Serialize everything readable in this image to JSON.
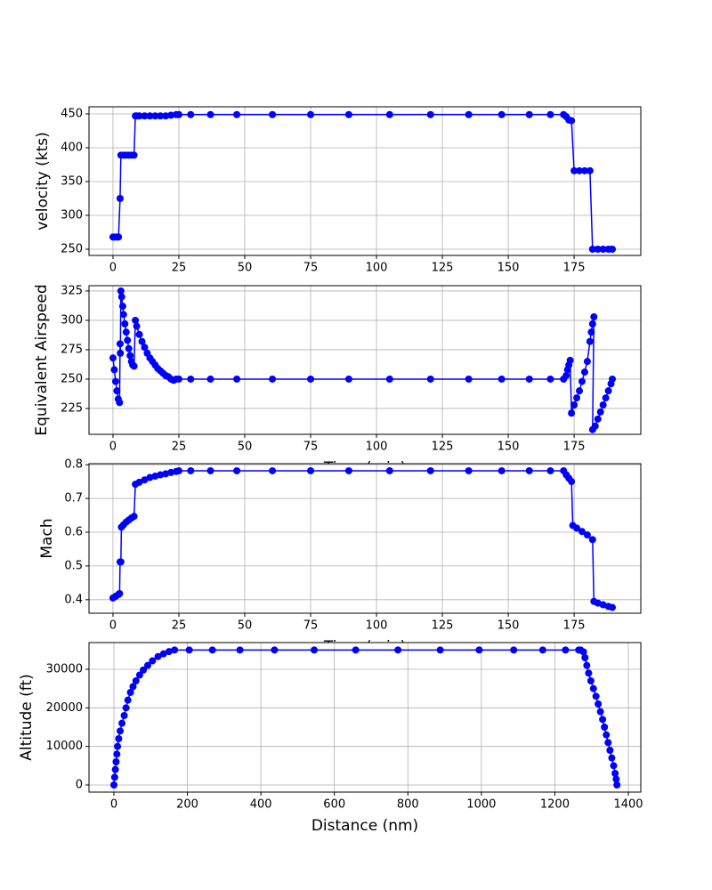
{
  "chart_data": [
    {
      "type": "line",
      "ylabel": "velocity (kts)",
      "color": "#0000ff",
      "grid": true,
      "x": [
        0,
        0.7,
        1.4,
        2.1,
        2.7,
        3,
        4,
        5,
        6,
        7,
        8,
        8.5,
        9,
        10,
        12,
        14,
        16,
        18,
        20,
        22,
        24,
        25,
        29.5,
        37,
        47,
        60.5,
        75,
        89.5,
        105,
        120.5,
        135,
        147.5,
        158,
        166,
        171,
        172,
        173,
        174,
        175,
        177,
        179,
        181,
        182,
        184,
        186,
        188,
        189.5
      ],
      "values": [
        268,
        268,
        268,
        268,
        325,
        389,
        389,
        389,
        389,
        389,
        389,
        447,
        447,
        447,
        447,
        447,
        447,
        447,
        447,
        448,
        449,
        449,
        449,
        449,
        449,
        449,
        449,
        449,
        449,
        449,
        449,
        449,
        449,
        449,
        449,
        446,
        441,
        440,
        366,
        366,
        366,
        366,
        250,
        250,
        250,
        250,
        250
      ],
      "xlim": [
        -9.1,
        200.3
      ],
      "xticks": [
        0,
        25,
        50,
        75,
        100,
        125,
        150,
        175
      ],
      "ylim": [
        240.8,
        460.5
      ],
      "yticks": [
        250,
        300,
        350,
        400,
        450
      ]
    },
    {
      "type": "line",
      "ylabel": "Equivalent Airspeed",
      "xlabel": "Time (min)",
      "color": "#0000ff",
      "grid": true,
      "x": [
        0,
        0.5,
        1,
        1.5,
        2,
        2.5,
        2.7,
        2.8,
        3,
        3.3,
        3.7,
        4,
        4.5,
        5,
        5.5,
        6,
        6.5,
        7,
        7.5,
        8,
        8.5,
        9,
        10,
        11,
        12,
        13,
        14,
        15,
        16,
        17,
        18,
        19,
        20,
        21,
        22,
        23,
        24,
        25,
        29.5,
        37,
        47,
        60.5,
        75,
        89.5,
        105,
        120.5,
        135,
        147.5,
        158,
        166,
        171,
        172,
        172.5,
        173,
        173.5,
        174,
        175,
        176,
        177,
        178,
        179,
        180,
        181,
        181.5,
        182,
        182.5,
        182,
        183,
        184,
        185,
        186,
        187,
        188,
        189,
        189.5
      ],
      "values": [
        268,
        258,
        248,
        240,
        233,
        230,
        280,
        272,
        325,
        320,
        312,
        305,
        297,
        290,
        283,
        276,
        270,
        265,
        262,
        261,
        300,
        295,
        288,
        282,
        277,
        272,
        268,
        265,
        262,
        259,
        257,
        255,
        253,
        252,
        250,
        249,
        250,
        250,
        250,
        250,
        250,
        250,
        250,
        250,
        250,
        250,
        250,
        250,
        250,
        250,
        250,
        253,
        258,
        262,
        266,
        221,
        228,
        234,
        240,
        248,
        256,
        265,
        282,
        290,
        297,
        303,
        207,
        210,
        216,
        222,
        228,
        234,
        240,
        246,
        250
      ],
      "xlim": [
        -9.1,
        200.3
      ],
      "xticks": [
        0,
        25,
        50,
        75,
        100,
        125,
        150,
        175
      ],
      "ylim": [
        203.0,
        329.5
      ],
      "yticks": [
        225,
        250,
        275,
        300,
        325
      ]
    },
    {
      "type": "line",
      "ylabel": "Mach",
      "xlabel": "Time (min)",
      "color": "#0000ff",
      "grid": true,
      "x": [
        0,
        1,
        2,
        2.5,
        2.7,
        3,
        3.2,
        4,
        5,
        6,
        7,
        8,
        8.5,
        10,
        12,
        14,
        16,
        18,
        20,
        22,
        24,
        25,
        29.5,
        37,
        47,
        60.5,
        75,
        89.5,
        105,
        120.5,
        135,
        147.5,
        158,
        166,
        171,
        172,
        173,
        174,
        174.5,
        176,
        178,
        180,
        182,
        182.5,
        184,
        186,
        188,
        189.5
      ],
      "values": [
        0.405,
        0.41,
        0.415,
        0.418,
        0.512,
        0.512,
        0.615,
        0.622,
        0.63,
        0.636,
        0.642,
        0.647,
        0.742,
        0.748,
        0.755,
        0.762,
        0.766,
        0.77,
        0.773,
        0.777,
        0.78,
        0.782,
        0.782,
        0.782,
        0.782,
        0.782,
        0.782,
        0.782,
        0.782,
        0.782,
        0.782,
        0.782,
        0.782,
        0.782,
        0.782,
        0.77,
        0.76,
        0.75,
        0.62,
        0.612,
        0.602,
        0.592,
        0.578,
        0.395,
        0.39,
        0.385,
        0.38,
        0.377
      ],
      "xlim": [
        -9.1,
        200.3
      ],
      "xticks": [
        0,
        25,
        50,
        75,
        100,
        125,
        150,
        175
      ],
      "ylim": [
        0.36,
        0.803
      ],
      "yticks": [
        0.4,
        0.5,
        0.6,
        0.7,
        0.8
      ]
    },
    {
      "type": "line",
      "ylabel": "Altitude (ft)",
      "xlabel": "Distance (nm)",
      "color": "#0000ff",
      "grid": true,
      "x": [
        0,
        2,
        4,
        6,
        8,
        10,
        13,
        17,
        22,
        28,
        33,
        38,
        45,
        52,
        60,
        70,
        80,
        92,
        105,
        120,
        135,
        150,
        165,
        205,
        268,
        343,
        437,
        545,
        658,
        773,
        888,
        994,
        1088,
        1167,
        1229,
        1265,
        1270,
        1278,
        1282,
        1287,
        1292,
        1298,
        1305,
        1312,
        1318,
        1324,
        1330,
        1335,
        1340,
        1345,
        1350,
        1355,
        1360,
        1364,
        1367,
        1369
      ],
      "values": [
        0,
        2000,
        4000,
        6000,
        8000,
        10000,
        12000,
        14000,
        16000,
        18000,
        20000,
        22000,
        24000,
        25500,
        27000,
        28500,
        29800,
        31000,
        32200,
        33300,
        34000,
        34600,
        35000,
        35000,
        35000,
        35000,
        35000,
        35000,
        35000,
        35000,
        35000,
        35000,
        35000,
        35000,
        35000,
        35000,
        35000,
        34500,
        33000,
        31000,
        29000,
        27000,
        25000,
        23000,
        21000,
        19000,
        17000,
        15000,
        13000,
        11000,
        9000,
        7000,
        5000,
        3000,
        1500,
        0
      ],
      "xlim": [
        -67.8,
        1433.9
      ],
      "xticks": [
        0,
        200,
        400,
        600,
        800,
        1000,
        1200,
        1400
      ],
      "ylim": [
        -1846,
        36923
      ],
      "yticks": [
        0,
        10000,
        20000,
        30000
      ]
    }
  ]
}
